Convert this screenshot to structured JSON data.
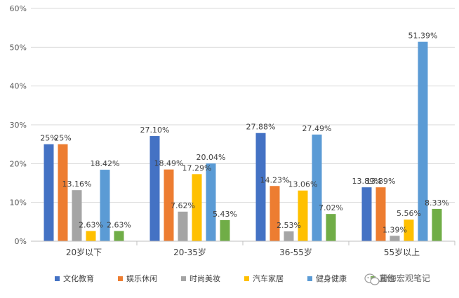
{
  "chart_data": {
    "type": "bar",
    "title": "",
    "xlabel": "",
    "ylabel": "",
    "ylim": [
      0,
      60
    ],
    "yticks": [
      "0%",
      "10%",
      "20%",
      "30%",
      "40%",
      "50%",
      "60%"
    ],
    "grid": true,
    "legend": "bottom",
    "categories": [
      "20岁以下",
      "20-35岁",
      "36-55岁",
      "55岁以上"
    ],
    "series": [
      {
        "name": "文化教育",
        "color": "#4472C4",
        "values": [
          25,
          27.1,
          27.88,
          13.89
        ],
        "labels": [
          "25%",
          "27.10%",
          "27.88%",
          "13.89%"
        ]
      },
      {
        "name": "娱乐休闲",
        "color": "#ED7D31",
        "values": [
          25,
          18.49,
          14.23,
          13.89
        ],
        "labels": [
          "25%",
          "18.49%",
          "14.23%",
          "13.89%"
        ]
      },
      {
        "name": "时尚美妆",
        "color": "#A5A5A5",
        "values": [
          13.16,
          7.62,
          2.53,
          1.39
        ],
        "labels": [
          "13.16%",
          "7.62%",
          "2.53%",
          "1.39%"
        ]
      },
      {
        "name": "汽车家居",
        "color": "#FFC000",
        "values": [
          2.63,
          17.29,
          13.06,
          5.56
        ],
        "labels": [
          "2.63%",
          "17.29%",
          "13.06%",
          "5.56%"
        ]
      },
      {
        "name": "健身健康",
        "color": "#5B9BD5",
        "values": [
          18.42,
          20.04,
          27.49,
          51.39
        ],
        "labels": [
          "18.42%",
          "20.04%",
          "27.49%",
          "51.39%"
        ]
      },
      {
        "name": "其他",
        "color": "#70AD47",
        "values": [
          2.63,
          5.43,
          7.02,
          8.33
        ],
        "labels": [
          "2.63%",
          "5.43%",
          "7.02%",
          "8.33%"
        ]
      }
    ]
  },
  "watermark": {
    "icon": "wechat-icon",
    "text": "曹海宏观笔记"
  }
}
